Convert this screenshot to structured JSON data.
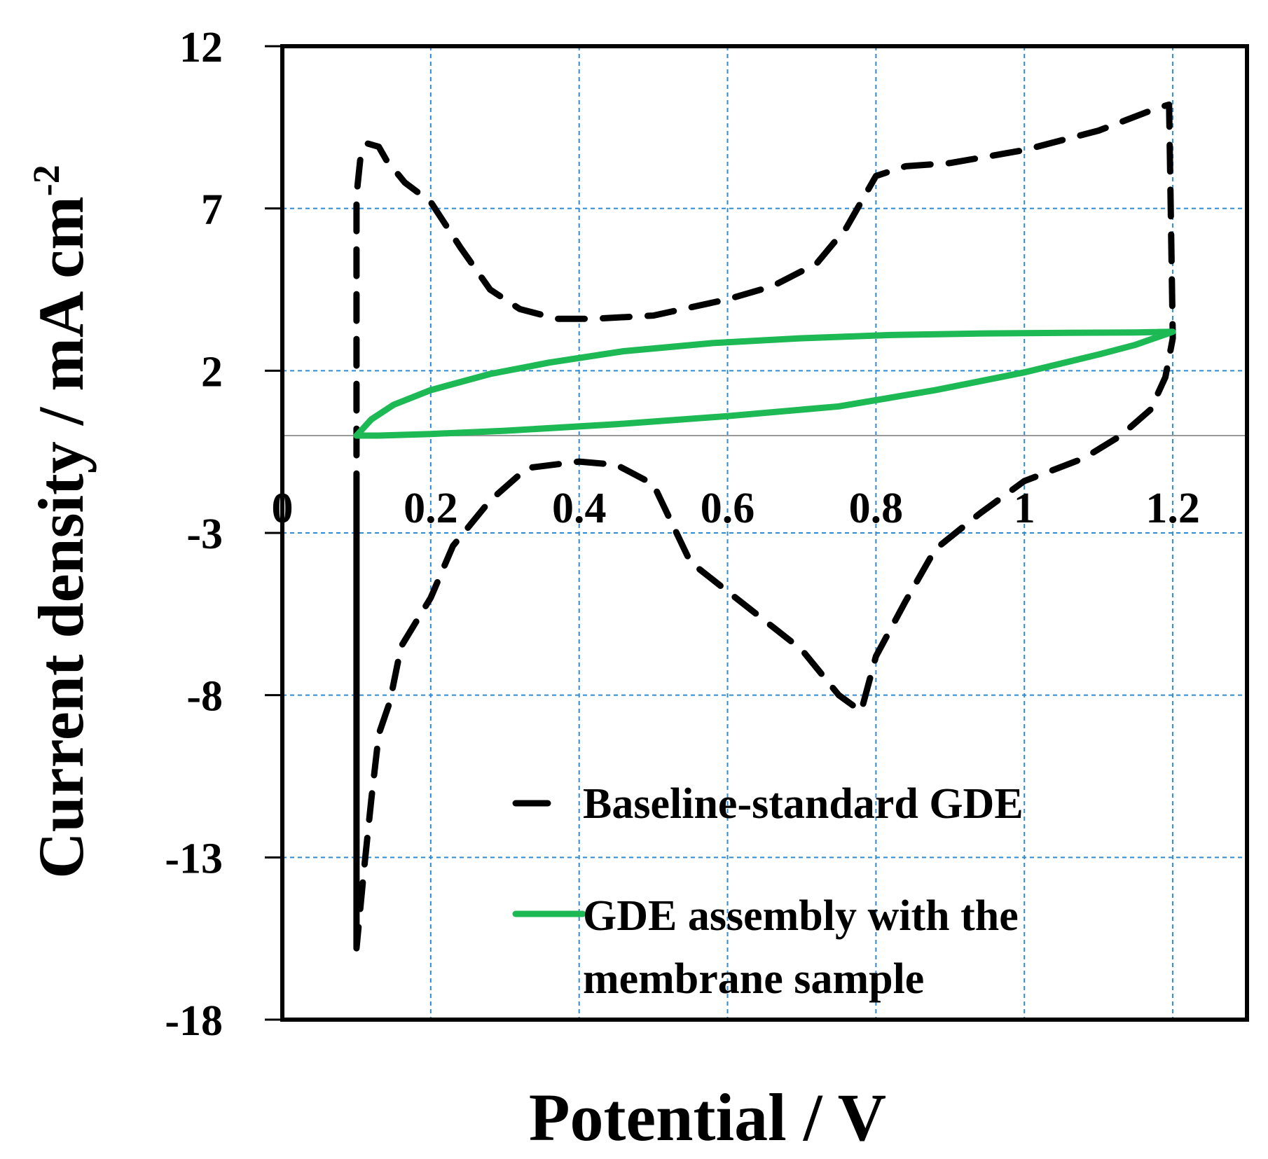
{
  "chart_data": {
    "type": "line",
    "title": "",
    "xlabel": "Potential / V",
    "ylabel_main": "Current density / mA cm",
    "ylabel_sup": "-2",
    "xlim": [
      0,
      1.3
    ],
    "ylim": [
      -18,
      12
    ],
    "x_ticks": [
      0,
      0.2,
      0.4,
      0.6,
      0.8,
      1,
      1.2
    ],
    "x_tick_labels": [
      "0",
      "0.2",
      "0.4",
      "0.6",
      "0.8",
      "1",
      "1.2"
    ],
    "y_ticks": [
      12,
      7,
      2,
      -3,
      -8,
      -13,
      -18
    ],
    "y_tick_labels": [
      "12",
      "7",
      "2",
      "-3",
      "-8",
      "-13",
      "-18"
    ],
    "grid": true,
    "legend_position": "bottom-right",
    "colors": {
      "baseline": "#000000",
      "membrane": "#1db954",
      "grid": "#2e8bd6",
      "zero_line": "#999999"
    },
    "series": [
      {
        "name": "Baseline-standard GDE",
        "style": "dashed",
        "x": [
          0.1,
          0.1,
          0.105,
          0.115,
          0.13,
          0.14,
          0.165,
          0.2,
          0.24,
          0.28,
          0.32,
          0.37,
          0.42,
          0.5,
          0.6,
          0.66,
          0.72,
          0.76,
          0.8,
          0.84,
          0.9,
          1.0,
          1.1,
          1.18,
          1.195,
          1.2,
          1.19,
          1.17,
          1.13,
          1.08,
          1.0,
          0.94,
          0.88,
          0.84,
          0.8,
          0.78,
          0.75,
          0.7,
          0.6,
          0.55,
          0.5,
          0.45,
          0.4,
          0.33,
          0.28,
          0.23,
          0.2,
          0.16,
          0.145,
          0.13,
          0.12,
          0.11,
          0.1,
          0.1,
          0.1
        ],
        "y": [
          -15.8,
          7.4,
          8.5,
          9.0,
          8.9,
          8.5,
          7.8,
          7.2,
          5.8,
          4.5,
          3.9,
          3.6,
          3.6,
          3.7,
          4.2,
          4.6,
          5.3,
          6.4,
          8.0,
          8.3,
          8.4,
          8.8,
          9.4,
          10.1,
          10.2,
          3.0,
          1.8,
          0.8,
          0.0,
          -0.7,
          -1.4,
          -2.4,
          -3.5,
          -5.1,
          -6.8,
          -8.5,
          -8.0,
          -6.6,
          -4.8,
          -3.9,
          -1.5,
          -0.9,
          -0.8,
          -1.0,
          -2.0,
          -3.4,
          -5.0,
          -6.5,
          -8.2,
          -9.2,
          -11.2,
          -13.4,
          -15.8,
          -9.0,
          -2.0
        ]
      },
      {
        "name": "GDE assembly with the membrane sample",
        "style": "solid",
        "x": [
          0.1,
          0.12,
          0.15,
          0.2,
          0.28,
          0.36,
          0.46,
          0.58,
          0.7,
          0.82,
          0.95,
          1.08,
          1.15,
          1.2,
          1.15,
          1.1,
          1.0,
          0.88,
          0.75,
          0.6,
          0.45,
          0.3,
          0.2,
          0.13,
          0.1
        ],
        "y": [
          0.0,
          0.5,
          0.95,
          1.4,
          1.9,
          2.25,
          2.6,
          2.85,
          3.0,
          3.1,
          3.15,
          3.17,
          3.18,
          3.2,
          2.8,
          2.5,
          1.95,
          1.4,
          0.9,
          0.6,
          0.35,
          0.15,
          0.05,
          0.0,
          0.0
        ]
      }
    ]
  }
}
